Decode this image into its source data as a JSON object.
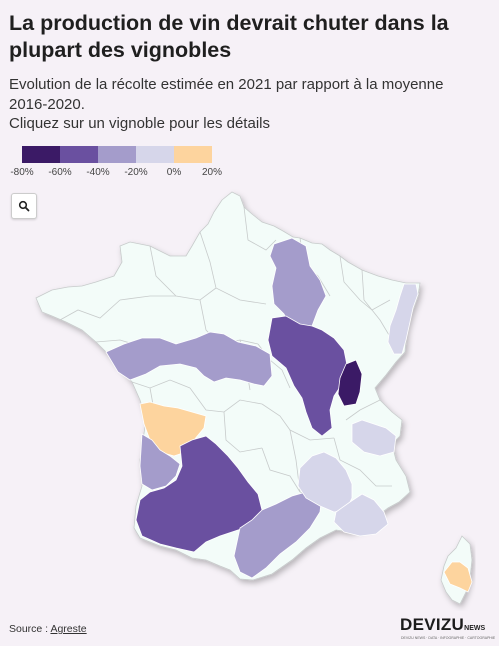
{
  "title": "La production de vin devrait chuter dans la plupart des vignobles",
  "subtitle_lines": [
    "Evolution de la récolte estimée en 2021 par rapport à la moyenne",
    "2016-2020.",
    "Cliquez sur un vignoble pour les détails"
  ],
  "legend": {
    "colors": [
      "#3b1a66",
      "#6a50a0",
      "#a49ccb",
      "#d6d6ea",
      "#fdd49e"
    ],
    "labels": [
      "-80%",
      "-60%",
      "-40%",
      "-20%",
      "0%",
      "20%"
    ]
  },
  "zoom_icon": "search-icon",
  "colors": {
    "background": "#f6f1f7",
    "land": "#f3fcf9",
    "dept_border": "#c7cbcb"
  },
  "regions": [
    {
      "id": "champagne",
      "class_color": "#a49ccb"
    },
    {
      "id": "alsace",
      "class_color": "#d6d6ea"
    },
    {
      "id": "val-de-loire",
      "class_color": "#a49ccb"
    },
    {
      "id": "bourgogne",
      "class_color": "#6a50a0"
    },
    {
      "id": "beaujolais",
      "class_color": "#3b1a66"
    },
    {
      "id": "savoie",
      "class_color": "#d6d6ea"
    },
    {
      "id": "charentes",
      "class_color": "#fdd49e"
    },
    {
      "id": "bordeaux",
      "class_color": "#a49ccb"
    },
    {
      "id": "sud-ouest",
      "class_color": "#6a50a0"
    },
    {
      "id": "languedoc",
      "class_color": "#a49ccb"
    },
    {
      "id": "vallee-du-rhone",
      "class_color": "#d6d6ea"
    },
    {
      "id": "provence",
      "class_color": "#d6d6ea"
    },
    {
      "id": "corse",
      "class_color": "#fdd49e"
    }
  ],
  "source": {
    "prefix": "Source : ",
    "link": "Agreste"
  },
  "brand": {
    "main": "DEVIZU",
    "suffix": "NEWS",
    "tagline": "DEVIZU NEWS · DATA · INFOGRAPHIE · CARTOGRAPHIE"
  }
}
